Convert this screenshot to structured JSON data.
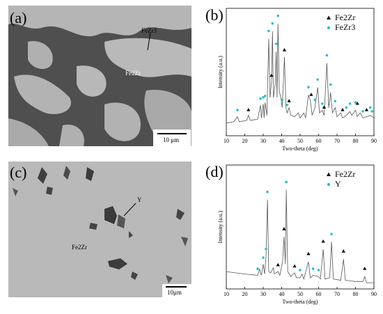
{
  "panels": [
    {
      "label": "(a)",
      "phase_labels": [
        "FeZr3",
        "Fe2Zr"
      ],
      "scale_bar": "10 μm"
    },
    {
      "label": "(c)",
      "phase_labels": [
        "Y",
        "Fe2Zr"
      ],
      "scale_bar": "10μm"
    }
  ],
  "chart_data": [
    {
      "type": "line",
      "panel_label": "(b)",
      "x_label": "Two-theta (deg)",
      "y_label": "Intensity (a.u.)",
      "xlim": [
        10,
        90
      ],
      "xticks": [
        10,
        20,
        30,
        40,
        50,
        60,
        70,
        80,
        90
      ],
      "ylim": [
        0,
        100
      ],
      "legend": "upper right",
      "pattern": {
        "color": "#555555",
        "x": [
          10,
          14,
          16,
          17,
          21,
          22,
          23,
          27,
          28.5,
          29,
          30,
          30.5,
          31,
          32,
          33,
          33.7,
          34.5,
          35,
          35.5,
          36.5,
          37,
          37.5,
          38,
          38.7,
          39.5,
          40.3,
          41.5,
          42.3,
          43,
          44,
          45,
          47,
          49,
          50,
          52,
          53,
          54.5,
          55.5,
          56.5,
          58,
          59.5,
          60.5,
          62,
          63,
          64.5,
          65.5,
          66.5,
          67.5,
          69,
          70,
          72,
          73,
          75,
          77,
          78,
          80,
          81,
          82.5,
          84,
          86,
          88,
          90
        ],
        "values": [
          10,
          11,
          15,
          11,
          12,
          16,
          12,
          13,
          24,
          14,
          25,
          14,
          26,
          16,
          76,
          30,
          42,
          82,
          30,
          40,
          66,
          30,
          88,
          35,
          30,
          22,
          62,
          22,
          18,
          22,
          16,
          15,
          18,
          14,
          18,
          14,
          32,
          28,
          16,
          22,
          38,
          18,
          20,
          16,
          57,
          22,
          34,
          18,
          22,
          15,
          18,
          14,
          16,
          19,
          16,
          20,
          15,
          18,
          14,
          15,
          16,
          14
        ]
      },
      "series": [
        {
          "name": "Fe2Zr",
          "color": "#000000",
          "marker": "triangle",
          "x": [
            22,
            34.5,
            41.5,
            44,
            56,
            63,
            73,
            81,
            86
          ],
          "values": [
            18,
            45,
            65,
            25,
            30,
            20,
            18,
            23,
            18
          ]
        },
        {
          "name": "FeZr3",
          "color": "#2bbfd0",
          "marker": "circle",
          "x": [
            16,
            28.5,
            30,
            31,
            33,
            35,
            37,
            38,
            40.3,
            43,
            54.5,
            58,
            59.5,
            62,
            64.5,
            66.5,
            69,
            75,
            77,
            80,
            84,
            88,
            89
          ],
          "values": [
            18,
            27,
            28,
            29,
            80,
            86,
            70,
            92,
            26,
            22,
            36,
            26,
            42,
            23,
            61,
            38,
            25,
            20,
            23,
            24,
            17,
            20,
            17
          ]
        }
      ]
    },
    {
      "type": "line",
      "panel_label": "(d)",
      "x_label": "Two-theta (deg)",
      "y_label": "Intensity (a.u.)",
      "xlim": [
        10,
        90
      ],
      "xticks": [
        10,
        20,
        30,
        40,
        50,
        60,
        70,
        80,
        90
      ],
      "ylim": [
        0,
        100
      ],
      "legend": "upper right",
      "pattern": {
        "color": "#555555",
        "x": [
          10,
          20,
          27,
          28,
          29,
          30,
          30.7,
          31.5,
          32.3,
          33,
          34,
          35.5,
          36,
          38,
          39,
          40.5,
          41.3,
          42,
          42.5,
          43.3,
          45,
          47,
          48,
          50,
          51,
          52,
          54.5,
          55.5,
          57,
          60,
          61,
          62.5,
          63.5,
          66,
          67,
          68,
          72,
          73.5,
          74.5,
          80,
          84,
          85,
          86,
          90
        ],
        "values": [
          14,
          12,
          11,
          16,
          11,
          20,
          12,
          26,
          72,
          14,
          13,
          17,
          12,
          14,
          11,
          22,
          42,
          20,
          80,
          14,
          10,
          13,
          9,
          9,
          12,
          8,
          22,
          9,
          11,
          10,
          8,
          32,
          8,
          9,
          38,
          8,
          7,
          24,
          7,
          6,
          6,
          10,
          5,
          5
        ]
      },
      "series": [
        {
          "name": "Fe2Zr",
          "color": "#000000",
          "marker": "triangle",
          "x": [
            38,
            41.3,
            47,
            54.5,
            62.5,
            73.5,
            85
          ],
          "values": [
            17,
            46,
            16,
            26,
            36,
            28,
            14
          ]
        },
        {
          "name": "Y",
          "color": "#2bbfd0",
          "marker": "circle",
          "x": [
            27,
            30,
            31.5,
            32.3,
            42.5,
            50,
            57,
            60,
            67
          ],
          "values": [
            14,
            23,
            30,
            76,
            84,
            13,
            14,
            13,
            42
          ]
        }
      ]
    }
  ]
}
